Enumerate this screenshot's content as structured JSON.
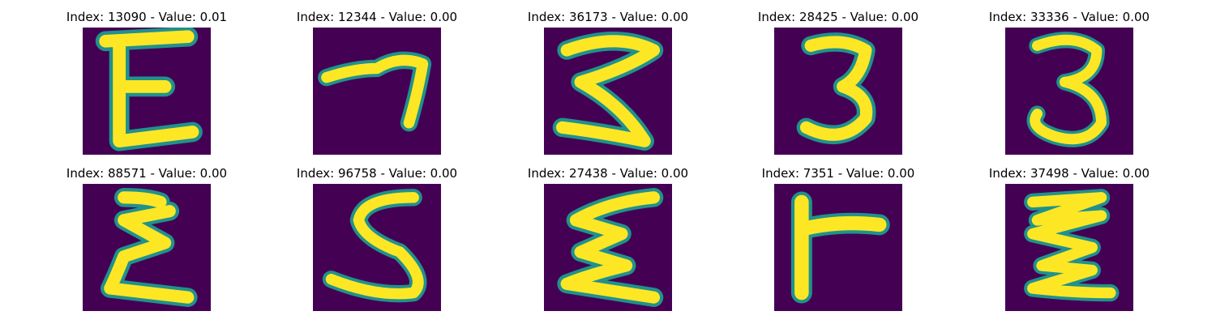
{
  "colors": {
    "background": "#440154",
    "stroke": "#fde725",
    "edge": "#21918c",
    "page": "#ffffff"
  },
  "panels": [
    {
      "title": "Index: 13090 - Value: 0.01",
      "glyph": "E"
    },
    {
      "title": "Index: 12344 - Value: 0.00",
      "glyph": "7"
    },
    {
      "title": "Index: 36173 - Value: 0.00",
      "glyph": "3"
    },
    {
      "title": "Index: 28425 - Value: 0.00",
      "glyph": "3"
    },
    {
      "title": "Index: 33336 - Value: 0.00",
      "glyph": "3"
    },
    {
      "title": "Index: 88571 - Value: 0.00",
      "glyph": "E"
    },
    {
      "title": "Index: 96758 - Value: 0.00",
      "glyph": "S"
    },
    {
      "title": "Index: 27438 - Value: 0.00",
      "glyph": "E"
    },
    {
      "title": "Index: 7351 - Value: 0.00",
      "glyph": "F"
    },
    {
      "title": "Index: 37498 - Value: 0.00",
      "glyph": "E"
    }
  ]
}
